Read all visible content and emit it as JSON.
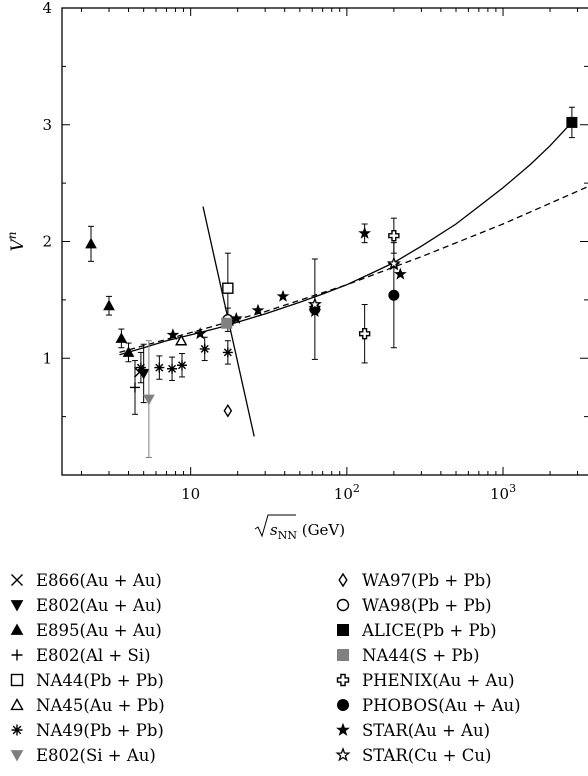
{
  "chart_data": {
    "type": "scatter",
    "title": "",
    "xlabel": "√s_NN (GeV)",
    "ylabel": "V^n",
    "x_scale": "log",
    "xlim": [
      1.5,
      3500
    ],
    "ylim": [
      0,
      4
    ],
    "x_ticks": [
      {
        "value": 10,
        "label": "10"
      },
      {
        "value": 100,
        "label": "10^2"
      },
      {
        "value": 1000,
        "label": "10^3"
      }
    ],
    "y_ticks": [
      1,
      2,
      3,
      4
    ],
    "legend_position": "below",
    "series": [
      {
        "name": "E866(Au + Au)",
        "marker": "cross-x",
        "color": "#000000",
        "points": [
          {
            "x": 4.7,
            "y": 0.88
          }
        ]
      },
      {
        "name": "E802(Au + Au)",
        "marker": "triangle-down-filled",
        "color": "#000000",
        "points": [
          {
            "x": 5.0,
            "y": 0.87,
            "err": 0.25
          }
        ]
      },
      {
        "name": "E895(Au + Au)",
        "marker": "triangle-up-filled",
        "color": "#000000",
        "points": [
          {
            "x": 2.3,
            "y": 1.98,
            "err": 0.15
          },
          {
            "x": 3.0,
            "y": 1.45,
            "err": 0.08
          },
          {
            "x": 3.6,
            "y": 1.17,
            "err": 0.08
          },
          {
            "x": 4.0,
            "y": 1.05,
            "err": 0.08
          }
        ]
      },
      {
        "name": "E802(Al + Si)",
        "marker": "plus",
        "color": "#000000",
        "points": [
          {
            "x": 4.4,
            "y": 0.75,
            "err": 0.23
          }
        ]
      },
      {
        "name": "NA44(Pb + Pb)",
        "marker": "square-open",
        "color": "#000000",
        "points": [
          {
            "x": 17.3,
            "y": 1.6,
            "err": 0.3
          }
        ]
      },
      {
        "name": "NA45(Au + Pb)",
        "marker": "triangle-up-open",
        "color": "#000000",
        "points": [
          {
            "x": 8.7,
            "y": 1.15
          },
          {
            "x": 17.3,
            "y": 1.32
          }
        ]
      },
      {
        "name": "NA49(Pb + Pb)",
        "marker": "asterisk",
        "color": "#000000",
        "points": [
          {
            "x": 4.8,
            "y": 0.92,
            "err": 0.13
          },
          {
            "x": 6.3,
            "y": 0.92,
            "err": 0.1
          },
          {
            "x": 7.6,
            "y": 0.91,
            "err": 0.1
          },
          {
            "x": 8.8,
            "y": 0.94,
            "err": 0.1
          },
          {
            "x": 12.3,
            "y": 1.08,
            "err": 0.1
          },
          {
            "x": 17.3,
            "y": 1.05,
            "err": 0.1
          }
        ]
      },
      {
        "name": "E802(Si + Au)",
        "marker": "triangle-down-filled-gray",
        "color": "#808080",
        "points": [
          {
            "x": 5.4,
            "y": 0.65,
            "err": 0.5
          }
        ]
      },
      {
        "name": "WA97(Pb + Pb)",
        "marker": "diamond-open",
        "color": "#000000",
        "points": [
          {
            "x": 17.3,
            "y": 0.55
          }
        ]
      },
      {
        "name": "WA98(Pb + Pb)",
        "marker": "circle-open",
        "color": "#000000",
        "points": [
          {
            "x": 17.3,
            "y": 1.33,
            "err": 0.1
          }
        ]
      },
      {
        "name": "ALICE(Pb + Pb)",
        "marker": "square-filled",
        "color": "#000000",
        "points": [
          {
            "x": 2760,
            "y": 3.02,
            "err": 0.13
          }
        ]
      },
      {
        "name": "NA44(S + Pb)",
        "marker": "square-filled-gray",
        "color": "#808080",
        "points": [
          {
            "x": 17.0,
            "y": 1.3
          }
        ]
      },
      {
        "name": "PHENIX(Au + Au)",
        "marker": "plus-open",
        "color": "#000000",
        "points": [
          {
            "x": 130,
            "y": 1.21,
            "err": 0.25
          },
          {
            "x": 200,
            "y": 2.05,
            "err": 0.15
          }
        ]
      },
      {
        "name": "PHOBOS(Au + Au)",
        "marker": "circle-filled",
        "color": "#000000",
        "points": [
          {
            "x": 62.4,
            "y": 1.42,
            "err": 0.43
          },
          {
            "x": 200,
            "y": 1.54,
            "err": 0.45
          }
        ]
      },
      {
        "name": "STAR(Au + Au)",
        "marker": "star-filled",
        "color": "#000000",
        "points": [
          {
            "x": 7.7,
            "y": 1.2
          },
          {
            "x": 11.5,
            "y": 1.21
          },
          {
            "x": 19.6,
            "y": 1.34
          },
          {
            "x": 27,
            "y": 1.41
          },
          {
            "x": 39,
            "y": 1.53
          },
          {
            "x": 62.4,
            "y": 1.43
          },
          {
            "x": 130,
            "y": 2.07,
            "err": 0.08
          },
          {
            "x": 200,
            "y": 1.8
          },
          {
            "x": 62.4,
            "y": 1.4
          },
          {
            "x": 220,
            "y": 1.72
          }
        ]
      },
      {
        "name": "STAR(Cu + Cu)",
        "marker": "star-open",
        "color": "#000000",
        "points": [
          {
            "x": 62.4,
            "y": 1.46
          },
          {
            "x": 200,
            "y": 1.81
          }
        ]
      }
    ],
    "fits": [
      {
        "style": "solid",
        "x": [
          3.5,
          5,
          7,
          10,
          15,
          20,
          30,
          50,
          70,
          100,
          150,
          200,
          300,
          500,
          700,
          1000,
          1500,
          2000,
          2800
        ],
        "y": [
          1.03,
          1.09,
          1.15,
          1.2,
          1.26,
          1.31,
          1.38,
          1.48,
          1.55,
          1.63,
          1.74,
          1.82,
          1.96,
          2.15,
          2.3,
          2.46,
          2.66,
          2.82,
          3.03
        ]
      },
      {
        "style": "dashed",
        "x": [
          3.5,
          10,
          30,
          100,
          300,
          1000,
          3500
        ],
        "y": [
          1.05,
          1.22,
          1.4,
          1.63,
          1.87,
          2.15,
          2.47
        ]
      },
      {
        "style": "solid-steep",
        "x": [
          12,
          25.5
        ],
        "y": [
          2.3,
          0.33
        ]
      }
    ]
  }
}
